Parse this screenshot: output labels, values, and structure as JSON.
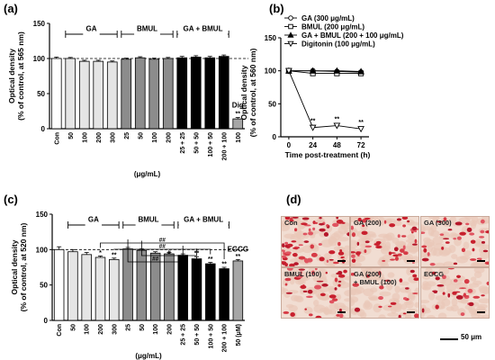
{
  "panels": {
    "a": "(a)",
    "b": "(b)",
    "c": "(c)",
    "d": "(d)"
  },
  "chart_data": [
    {
      "panel": "a",
      "type": "bar",
      "ylabel": [
        "Optical density",
        "(% of control, at 565 nm)"
      ],
      "xlabel": "(μg/mL)",
      "ylim": [
        0,
        150
      ],
      "yticks": [
        0,
        50,
        100,
        150
      ],
      "reference_line": 100,
      "groups": [
        "GA",
        "BMUL",
        "GA + BMUL"
      ],
      "categories": [
        "Con",
        "50",
        "100",
        "200",
        "300",
        "25",
        "50",
        "100",
        "200",
        "25 + 25",
        "50 + 50",
        "100 + 50",
        "200 + 100",
        "100"
      ],
      "values": [
        100,
        100,
        96,
        96,
        95,
        99,
        101,
        99,
        100,
        101,
        102,
        101,
        103,
        14
      ],
      "errors": [
        2,
        1.5,
        1.5,
        1.5,
        1.5,
        1.5,
        1.5,
        1.5,
        1.5,
        2,
        2,
        2,
        2,
        2
      ],
      "fills": [
        "#ffffff",
        "#e5e5e5",
        "#e5e5e5",
        "#e5e5e5",
        "#e5e5e5",
        "#8c8c8c",
        "#8c8c8c",
        "#8c8c8c",
        "#8c8c8c",
        "#000000",
        "#000000",
        "#000000",
        "#000000",
        "#a6a6a6"
      ],
      "annotations": [
        {
          "category_index": 13,
          "text": "Dig"
        },
        {
          "category_index": 13,
          "text": "**"
        }
      ]
    },
    {
      "panel": "b",
      "type": "line",
      "ylabel": [
        "Optical density",
        "(% of control, at 560 nm)"
      ],
      "xlabel": "Time post-treatment (h)",
      "x": [
        0,
        24,
        48,
        72
      ],
      "xlim": [
        -8,
        80
      ],
      "ylim": [
        0,
        150
      ],
      "yticks": [
        0,
        50,
        100,
        150
      ],
      "legend_position": "top",
      "series": [
        {
          "name": "GA (300 μg/mL)",
          "values": [
            100,
            100,
            99,
            98
          ],
          "marker": "circle"
        },
        {
          "name": "BMUL (200 μg/mL)",
          "values": [
            100,
            96,
            96,
            96
          ],
          "marker": "square"
        },
        {
          "name": "GA + BMUL (200 + 100 μg/mL)",
          "values": [
            100,
            100,
            100,
            99
          ],
          "marker": "triangle"
        },
        {
          "name": "Digitonin (100 μg/mL)",
          "values": [
            100,
            14,
            17,
            12
          ],
          "marker": "triangle-down",
          "annotations": [
            {
              "x": 24,
              "text": "**"
            },
            {
              "x": 48,
              "text": "**"
            },
            {
              "x": 72,
              "text": "**"
            }
          ]
        }
      ]
    },
    {
      "panel": "c",
      "type": "bar",
      "ylabel": [
        "Optical density",
        "(% of control, at 520 nm)"
      ],
      "xlabel": "(μg/mL)",
      "ylim": [
        0,
        150
      ],
      "yticks": [
        0,
        50,
        100,
        150
      ],
      "reference_line": 100,
      "groups": [
        "GA",
        "BMUL",
        "GA + BMUL"
      ],
      "categories": [
        "Con",
        "50",
        "100",
        "200",
        "300",
        "25",
        "50",
        "100",
        "200",
        "25 + 25",
        "50 + 50",
        "100 + 50",
        "200 + 100",
        "50 (μM)"
      ],
      "values": [
        100,
        97,
        93,
        89,
        86,
        101,
        99,
        95,
        94,
        92,
        87,
        80,
        73,
        84
      ],
      "errors": [
        4,
        3,
        3,
        2,
        2,
        2,
        2,
        2,
        2,
        2,
        3,
        2,
        2,
        2
      ],
      "fills": [
        "#ffffff",
        "#e5e5e5",
        "#e5e5e5",
        "#e5e5e5",
        "#e5e5e5",
        "#8c8c8c",
        "#8c8c8c",
        "#8c8c8c",
        "#8c8c8c",
        "#000000",
        "#000000",
        "#000000",
        "#000000",
        "#a6a6a6"
      ],
      "significance": [
        "",
        "",
        "",
        "*",
        "**",
        "",
        "",
        "",
        "",
        "",
        "**",
        "**",
        "**",
        "**"
      ],
      "extra_label": {
        "category_index": 13,
        "text": "EGCG"
      },
      "comparison_brackets": [
        {
          "from": 3,
          "to": 12,
          "text": "##"
        },
        {
          "from": 4,
          "to": 11,
          "text": "##"
        },
        {
          "from": 6,
          "to": 10,
          "text": "#"
        },
        {
          "from": 5,
          "to": 9,
          "text": "##"
        }
      ]
    }
  ],
  "micrographs": [
    {
      "label": "Con"
    },
    {
      "label": "GA (200)"
    },
    {
      "label": "GA (300)"
    },
    {
      "label": "BMUL (100)"
    },
    {
      "label": "GA (200)\n+ BMUL (100)"
    },
    {
      "label": "EGCG"
    }
  ],
  "scalebar_label": "50 μm"
}
